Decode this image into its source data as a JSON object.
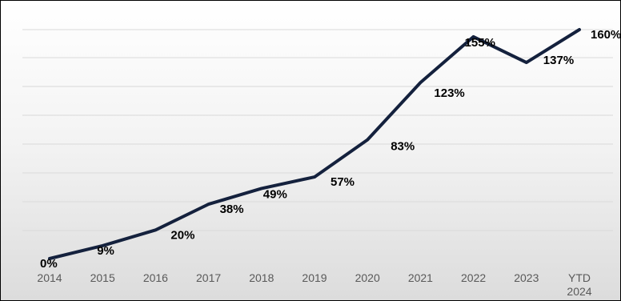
{
  "chart_data": {
    "type": "line",
    "categories": [
      "2014",
      "2015",
      "2016",
      "2017",
      "2018",
      "2019",
      "2020",
      "2021",
      "2022",
      "2023",
      "YTD 2024"
    ],
    "values": [
      0,
      9,
      20,
      38,
      49,
      57,
      83,
      123,
      155,
      137,
      160
    ],
    "data_labels": [
      "0%",
      "9%",
      "20%",
      "38%",
      "49%",
      "57%",
      "83%",
      "123%",
      "155%",
      "137%",
      "160%"
    ],
    "title": "",
    "xlabel": "",
    "ylabel": "",
    "ylim": [
      0,
      160
    ],
    "grid": true,
    "legend": "none",
    "colors": {
      "line": "#14213d",
      "gridline": "#d9d9d9",
      "tick_text": "#595959",
      "label_text": "#000000"
    }
  }
}
